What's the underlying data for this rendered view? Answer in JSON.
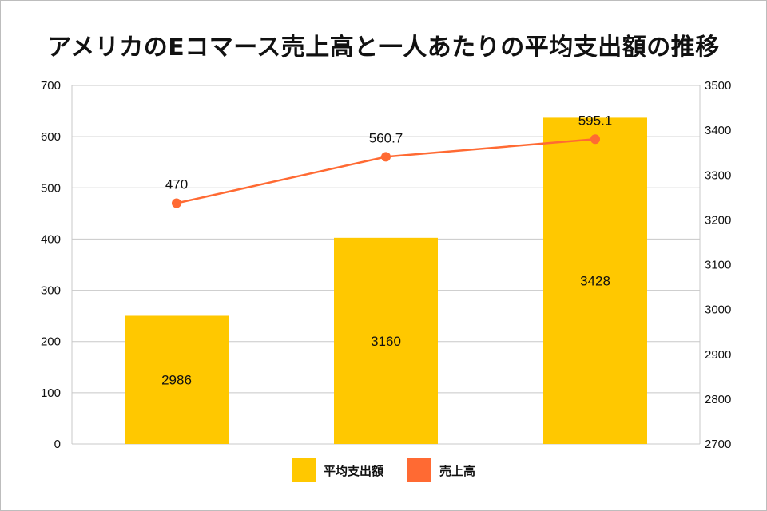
{
  "chart_data": {
    "type": "bar+line",
    "title": "アメリカのEコマース売上高と一人あたりの平均支出額の推移",
    "categories": [
      "",
      "",
      ""
    ],
    "left_axis": {
      "min": 0,
      "max": 700,
      "ticks": [
        0,
        100,
        200,
        300,
        400,
        500,
        600,
        700
      ]
    },
    "right_axis": {
      "min": 2700,
      "max": 3500,
      "ticks": [
        2700,
        2800,
        2900,
        3000,
        3100,
        3200,
        3300,
        3400,
        3500
      ]
    },
    "series": [
      {
        "name": "平均支出額",
        "type": "bar",
        "axis": "right",
        "values": [
          2986,
          3160,
          3428
        ],
        "labels": [
          "2986",
          "3160",
          "3428"
        ],
        "color": "#ffc800"
      },
      {
        "name": "売上高",
        "type": "line",
        "axis": "left",
        "values": [
          470,
          560.7,
          595.1
        ],
        "labels": [
          "470",
          "560.7",
          "595.1"
        ],
        "color": "#ff6a33"
      }
    ],
    "grid": true
  },
  "legend": [
    {
      "label": "平均支出額",
      "color": "#ffc800"
    },
    {
      "label": "売上高",
      "color": "#ff6a33"
    }
  ]
}
